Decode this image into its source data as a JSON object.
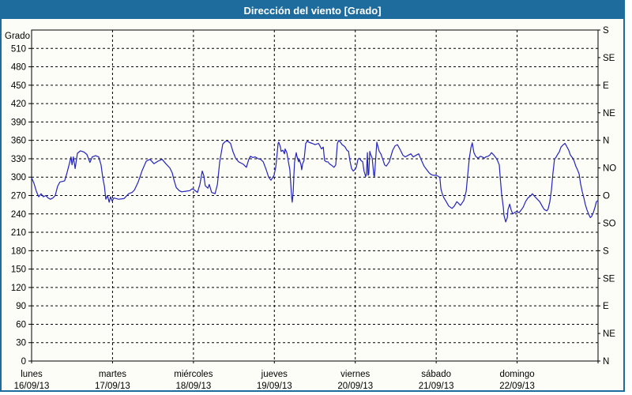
{
  "window": {
    "title": "Dirección del viento [Grado]",
    "title_bar_color": "#1e6b9e",
    "border_color": "#1e6b9e",
    "background": "#fdfdf8"
  },
  "chart_data": {
    "type": "line",
    "title": "Dirección del viento [Grado]",
    "ylabel_left": "Grado",
    "y_left": {
      "min": 0,
      "max": 540,
      "tick_step": 30,
      "labeled_min": 0,
      "labeled_max": 510
    },
    "y_right_ticks": [
      {
        "deg": 0,
        "label": "N"
      },
      {
        "deg": 45,
        "label": "NE"
      },
      {
        "deg": 90,
        "label": "E"
      },
      {
        "deg": 135,
        "label": "SE"
      },
      {
        "deg": 180,
        "label": "S"
      },
      {
        "deg": 225,
        "label": "SO"
      },
      {
        "deg": 270,
        "label": "O"
      },
      {
        "deg": 315,
        "label": "NO"
      },
      {
        "deg": 360,
        "label": "N"
      },
      {
        "deg": 405,
        "label": "NE"
      },
      {
        "deg": 450,
        "label": "E"
      },
      {
        "deg": 495,
        "label": "SE"
      },
      {
        "deg": 540,
        "label": "S"
      }
    ],
    "x_axis": {
      "hours_total": 168,
      "day_width_hours": 24,
      "days": [
        {
          "name": "lunes",
          "date": "16/09/13"
        },
        {
          "name": "martes",
          "date": "17/09/13"
        },
        {
          "name": "miércoles",
          "date": "18/09/13"
        },
        {
          "name": "jueves",
          "date": "19/09/13"
        },
        {
          "name": "viernes",
          "date": "20/09/13"
        },
        {
          "name": "sábado",
          "date": "21/09/13"
        },
        {
          "name": "domingo",
          "date": "22/09/13"
        }
      ]
    },
    "grid": {
      "style": "dashed",
      "color": "#000000"
    },
    "series": [
      {
        "name": "Dirección del viento",
        "unit": "Grado",
        "color": "#2323bd",
        "points": [
          [
            0,
            299
          ],
          [
            0.7,
            290
          ],
          [
            1.4,
            277
          ],
          [
            2.1,
            268
          ],
          [
            2.8,
            273
          ],
          [
            3.5,
            268
          ],
          [
            4.2,
            270
          ],
          [
            4.9,
            266
          ],
          [
            5.6,
            264
          ],
          [
            6.3,
            266
          ],
          [
            7,
            270
          ],
          [
            7.7,
            285
          ],
          [
            8.4,
            292
          ],
          [
            9.1,
            293
          ],
          [
            9.8,
            294
          ],
          [
            10.5,
            307
          ],
          [
            11.2,
            322
          ],
          [
            11.7,
            333
          ],
          [
            12,
            320
          ],
          [
            12.4,
            333
          ],
          [
            12.9,
            314
          ],
          [
            13.6,
            339
          ],
          [
            14.5,
            343
          ],
          [
            15.5,
            341
          ],
          [
            16.4,
            337
          ],
          [
            17.3,
            324
          ],
          [
            18,
            333
          ],
          [
            19,
            335
          ],
          [
            19.9,
            333
          ],
          [
            20.6,
            320
          ],
          [
            21.1,
            299
          ],
          [
            21.6,
            285
          ],
          [
            22,
            264
          ],
          [
            22.5,
            270
          ],
          [
            23,
            259
          ],
          [
            23.4,
            268
          ],
          [
            23.9,
            261
          ],
          [
            24.4,
            266
          ],
          [
            25.8,
            264
          ],
          [
            27.4,
            265
          ],
          [
            28.8,
            273
          ],
          [
            29.8,
            275
          ],
          [
            30.5,
            279
          ],
          [
            31.6,
            292
          ],
          [
            32.8,
            311
          ],
          [
            34,
            326
          ],
          [
            35.1,
            329
          ],
          [
            36.3,
            322
          ],
          [
            37.5,
            326
          ],
          [
            38.7,
            329
          ],
          [
            39.8,
            322
          ],
          [
            41,
            315
          ],
          [
            41.7,
            307
          ],
          [
            42.2,
            296
          ],
          [
            42.9,
            283
          ],
          [
            43.8,
            278
          ],
          [
            44.5,
            276
          ],
          [
            45.7,
            277
          ],
          [
            46.9,
            278
          ],
          [
            47.6,
            281
          ],
          [
            48.3,
            279
          ],
          [
            49.2,
            275
          ],
          [
            49.9,
            288
          ],
          [
            50.6,
            310
          ],
          [
            51.1,
            302
          ],
          [
            51.5,
            286
          ],
          [
            52.3,
            282
          ],
          [
            52.7,
            288
          ],
          [
            53.4,
            275
          ],
          [
            54.4,
            273
          ],
          [
            55.1,
            288
          ],
          [
            55.8,
            325
          ],
          [
            56.7,
            354
          ],
          [
            57.4,
            358
          ],
          [
            58.1,
            359
          ],
          [
            59,
            355
          ],
          [
            59.7,
            342
          ],
          [
            60.5,
            331
          ],
          [
            61.4,
            325
          ],
          [
            62.1,
            323
          ],
          [
            62.8,
            321
          ],
          [
            63.7,
            316
          ],
          [
            64.4,
            329
          ],
          [
            64.9,
            334
          ],
          [
            65.6,
            332
          ],
          [
            66.3,
            333
          ],
          [
            67.2,
            330
          ],
          [
            67.9,
            329
          ],
          [
            68.7,
            325
          ],
          [
            69.6,
            312
          ],
          [
            70.3,
            300
          ],
          [
            71,
            295
          ],
          [
            71.9,
            303
          ],
          [
            72.4,
            316
          ],
          [
            72.6,
            325
          ],
          [
            72.9,
            342
          ],
          [
            73.1,
            355
          ],
          [
            73.3,
            357
          ],
          [
            73.8,
            349
          ],
          [
            74,
            342
          ],
          [
            74.5,
            344
          ],
          [
            75,
            338
          ],
          [
            75.2,
            346
          ],
          [
            75.7,
            340
          ],
          [
            76.1,
            327
          ],
          [
            76.6,
            312
          ],
          [
            77.1,
            268
          ],
          [
            77.3,
            259
          ],
          [
            77.6,
            277
          ],
          [
            77.8,
            303
          ],
          [
            78,
            325
          ],
          [
            78.5,
            340
          ],
          [
            78.7,
            334
          ],
          [
            79.2,
            325
          ],
          [
            79.4,
            329
          ],
          [
            79.9,
            320
          ],
          [
            80.1,
            312
          ],
          [
            80.4,
            322
          ],
          [
            80.8,
            327
          ],
          [
            81.3,
            355
          ],
          [
            81.8,
            359
          ],
          [
            82.2,
            357
          ],
          [
            83.2,
            355
          ],
          [
            84.1,
            353
          ],
          [
            85.1,
            355
          ],
          [
            85.5,
            351
          ],
          [
            86,
            346
          ],
          [
            86.5,
            349
          ],
          [
            86.9,
            327
          ],
          [
            87.4,
            325
          ],
          [
            87.9,
            325
          ],
          [
            88.3,
            322
          ],
          [
            88.8,
            320
          ],
          [
            89.3,
            318
          ],
          [
            89.7,
            316
          ],
          [
            90.2,
            320
          ],
          [
            90.7,
            355
          ],
          [
            91.1,
            360
          ],
          [
            91.6,
            357
          ],
          [
            92.1,
            353
          ],
          [
            92.6,
            351
          ],
          [
            93,
            349
          ],
          [
            93.5,
            344
          ],
          [
            94,
            342
          ],
          [
            94.4,
            327
          ],
          [
            94.9,
            314
          ],
          [
            95.4,
            310
          ],
          [
            95.8,
            312
          ],
          [
            96.3,
            316
          ],
          [
            96.8,
            329
          ],
          [
            97.2,
            331
          ],
          [
            97.7,
            327
          ],
          [
            98.2,
            325
          ],
          [
            98.6,
            310
          ],
          [
            99.1,
            301
          ],
          [
            99.3,
            305
          ],
          [
            99.6,
            340
          ],
          [
            99.8,
            303
          ],
          [
            100,
            305
          ],
          [
            100.3,
            342
          ],
          [
            100.5,
            338
          ],
          [
            101,
            331
          ],
          [
            101.5,
            303
          ],
          [
            101.7,
            301
          ],
          [
            102.4,
            357
          ],
          [
            103.1,
            342
          ],
          [
            103.6,
            338
          ],
          [
            104.3,
            327
          ],
          [
            104.7,
            320
          ],
          [
            105.2,
            318
          ],
          [
            105.7,
            322
          ],
          [
            106.1,
            325
          ],
          [
            107.1,
            344
          ],
          [
            107.8,
            351
          ],
          [
            108.5,
            353
          ],
          [
            109.4,
            344
          ],
          [
            110.1,
            336
          ],
          [
            110.8,
            333
          ],
          [
            111.8,
            336
          ],
          [
            112.5,
            338
          ],
          [
            113.2,
            333
          ],
          [
            114.1,
            336
          ],
          [
            114.8,
            338
          ],
          [
            115.5,
            329
          ],
          [
            116.4,
            318
          ],
          [
            117.2,
            312
          ],
          [
            117.9,
            307
          ],
          [
            118.3,
            305
          ],
          [
            119,
            303
          ],
          [
            120,
            303
          ],
          [
            120.7,
            301
          ],
          [
            121.1,
            299
          ],
          [
            121.4,
            281
          ],
          [
            121.8,
            273
          ],
          [
            122.3,
            266
          ],
          [
            123,
            260
          ],
          [
            123.7,
            253
          ],
          [
            124.7,
            249
          ],
          [
            125.4,
            253
          ],
          [
            126.1,
            260
          ],
          [
            126.5,
            258
          ],
          [
            127.2,
            254
          ],
          [
            128.2,
            262
          ],
          [
            128.9,
            277
          ],
          [
            129.3,
            300
          ],
          [
            129.8,
            330
          ],
          [
            130.3,
            348
          ],
          [
            130.7,
            356
          ],
          [
            131.2,
            340
          ],
          [
            131.7,
            334
          ],
          [
            132.4,
            331
          ],
          [
            133.1,
            334
          ],
          [
            133.6,
            333
          ],
          [
            134.3,
            331
          ],
          [
            134.7,
            333
          ],
          [
            135.4,
            334
          ],
          [
            135.9,
            336
          ],
          [
            136.4,
            340
          ],
          [
            137.1,
            336
          ],
          [
            137.8,
            331
          ],
          [
            138.2,
            327
          ],
          [
            138.7,
            320
          ],
          [
            139,
            299
          ],
          [
            139.4,
            273
          ],
          [
            139.9,
            251
          ],
          [
            140.1,
            238
          ],
          [
            140.6,
            227
          ],
          [
            141.1,
            234
          ],
          [
            141.3,
            247
          ],
          [
            141.8,
            256
          ],
          [
            142.2,
            247
          ],
          [
            142.7,
            240
          ],
          [
            143.2,
            242
          ],
          [
            143.9,
            244
          ],
          [
            144.6,
            242
          ],
          [
            145.3,
            247
          ],
          [
            145.8,
            251
          ],
          [
            146.5,
            260
          ],
          [
            147.2,
            266
          ],
          [
            148.1,
            270
          ],
          [
            148.5,
            273
          ],
          [
            149.3,
            268
          ],
          [
            150,
            264
          ],
          [
            150.7,
            260
          ],
          [
            151.6,
            251
          ],
          [
            152.1,
            247
          ],
          [
            152.8,
            245
          ],
          [
            153.2,
            248
          ],
          [
            153.7,
            260
          ],
          [
            154.2,
            280
          ],
          [
            154.6,
            305
          ],
          [
            155.1,
            329
          ],
          [
            155.6,
            333
          ],
          [
            156,
            337
          ],
          [
            156.5,
            341
          ],
          [
            157,
            349
          ],
          [
            157.7,
            353
          ],
          [
            158.2,
            355
          ],
          [
            158.6,
            351
          ],
          [
            159.3,
            344
          ],
          [
            159.8,
            336
          ],
          [
            160.5,
            331
          ],
          [
            161,
            325
          ],
          [
            161.4,
            318
          ],
          [
            161.9,
            312
          ],
          [
            162.4,
            305
          ],
          [
            162.8,
            290
          ],
          [
            163.3,
            277
          ],
          [
            163.8,
            266
          ],
          [
            164.2,
            256
          ],
          [
            164.7,
            247
          ],
          [
            165.2,
            240
          ],
          [
            165.7,
            234
          ],
          [
            166.1,
            236
          ],
          [
            166.6,
            242
          ],
          [
            167.1,
            251
          ],
          [
            167.5,
            260
          ],
          [
            168,
            262
          ]
        ]
      }
    ]
  }
}
